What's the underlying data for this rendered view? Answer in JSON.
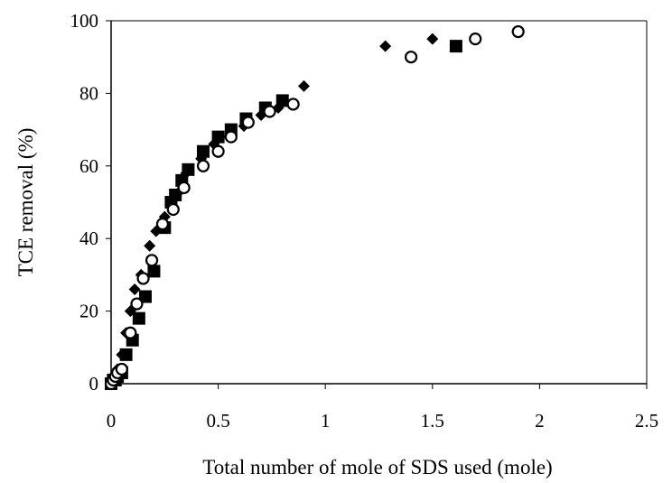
{
  "chart_data": {
    "type": "scatter",
    "xlabel": "Total number of mole of SDS used (mole)",
    "ylabel": "TCE removal (%)",
    "xlim": [
      0,
      2.5
    ],
    "ylim": [
      0,
      100
    ],
    "x_ticks": [
      "0",
      "0.5",
      "1",
      "1.5",
      "2",
      "2.5"
    ],
    "y_ticks": [
      "0",
      "20",
      "40",
      "60",
      "80",
      "100"
    ],
    "grid": false,
    "legend": "none",
    "colors": {
      "marker": "#000000",
      "axis": "#000000",
      "background": "#ffffff"
    },
    "series": [
      {
        "marker": "diamond",
        "x": [
          0,
          0.01,
          0.02,
          0.03,
          0.05,
          0.07,
          0.09,
          0.11,
          0.14,
          0.18,
          0.21,
          0.25,
          0.28,
          0.32,
          0.35,
          0.42,
          0.48,
          0.55,
          0.62,
          0.7,
          0.78,
          0.9,
          1.28,
          1.5
        ],
        "y": [
          0,
          1,
          2,
          4,
          8,
          14,
          20,
          26,
          30,
          38,
          42,
          46,
          50,
          53,
          58,
          62,
          66,
          68,
          71,
          74,
          76,
          82,
          93,
          95
        ]
      },
      {
        "marker": "square",
        "x": [
          0,
          0.01,
          0.02,
          0.03,
          0.05,
          0.07,
          0.1,
          0.13,
          0.16,
          0.2,
          0.25,
          0.28,
          0.3,
          0.33,
          0.36,
          0.43,
          0.5,
          0.56,
          0.63,
          0.72,
          0.8,
          1.61
        ],
        "y": [
          0,
          1,
          1,
          2,
          3,
          8,
          12,
          18,
          24,
          31,
          43,
          50,
          52,
          56,
          59,
          64,
          68,
          70,
          73,
          76,
          78,
          93
        ]
      },
      {
        "marker": "open-circle",
        "x": [
          0,
          0.01,
          0.02,
          0.03,
          0.05,
          0.09,
          0.12,
          0.15,
          0.19,
          0.24,
          0.29,
          0.34,
          0.43,
          0.5,
          0.56,
          0.64,
          0.74,
          0.85,
          1.4,
          1.7,
          1.9
        ],
        "y": [
          0,
          1,
          2,
          3,
          4,
          14,
          22,
          29,
          34,
          44,
          48,
          54,
          60,
          64,
          68,
          72,
          75,
          77,
          90,
          95,
          97
        ]
      }
    ]
  }
}
